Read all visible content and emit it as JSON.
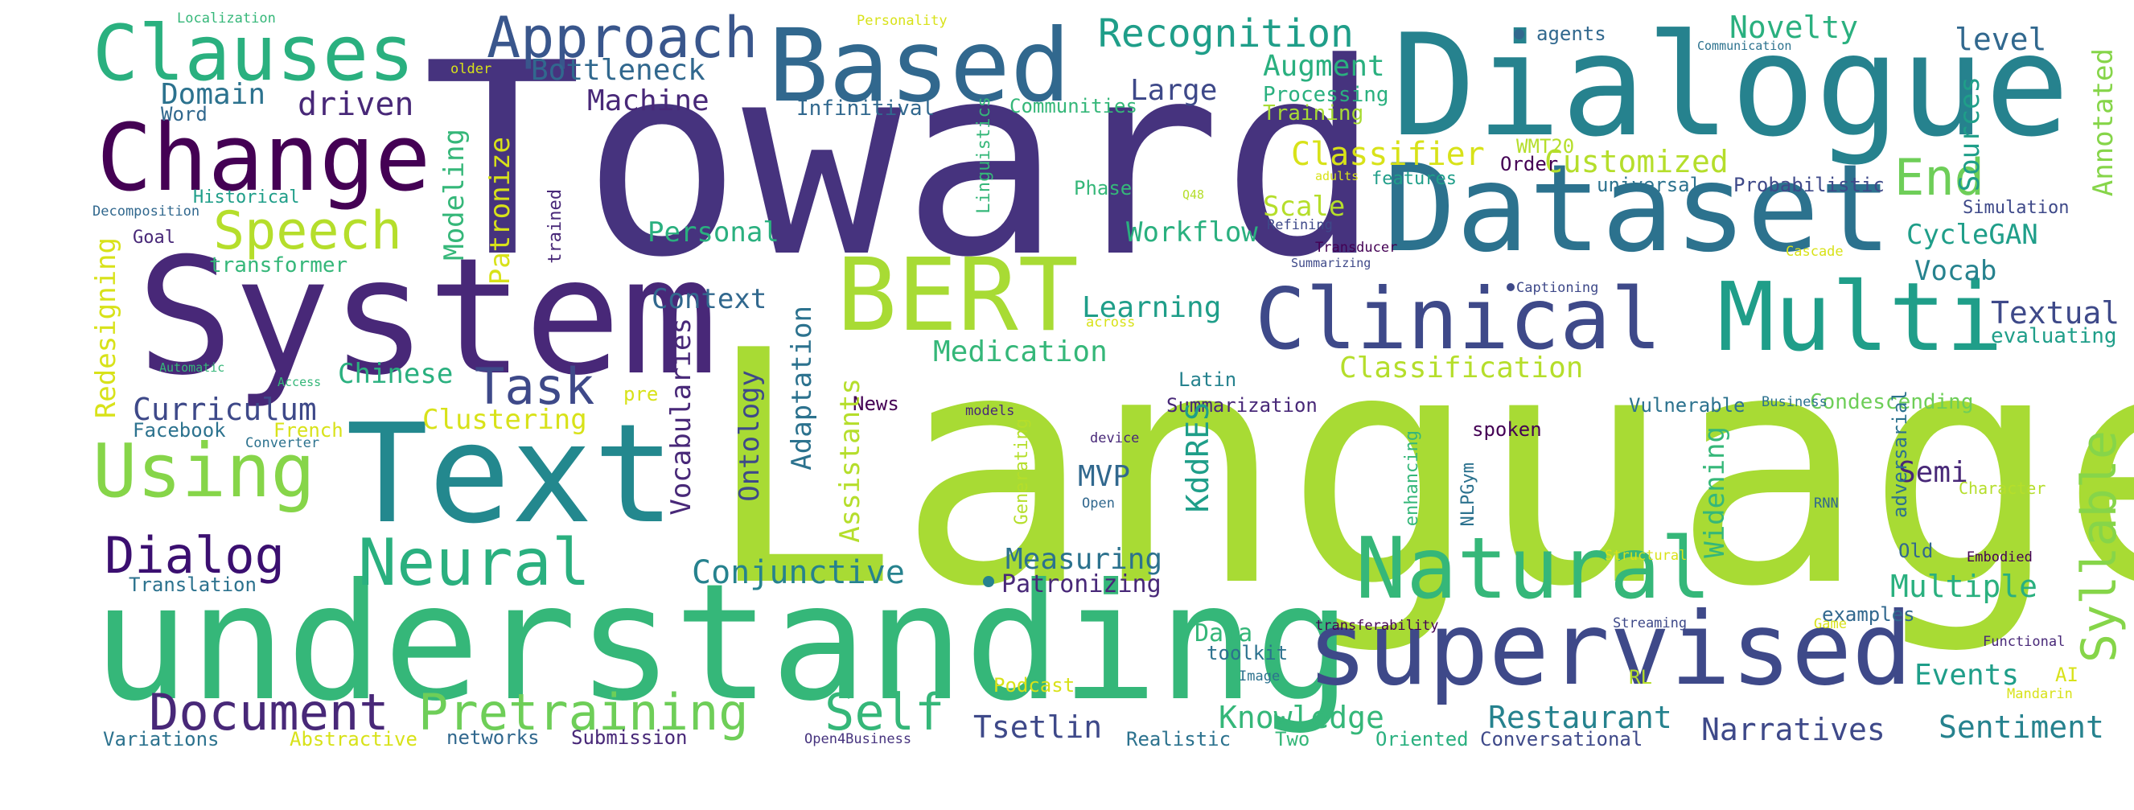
{
  "palette": {
    "dark_purple": "#440154",
    "indigo": "#46337e",
    "slate_blue": "#3e4989",
    "steel_blue": "#31688e",
    "teal": "#26828e",
    "sea_green": "#1f9e89",
    "green": "#35b779",
    "lime": "#6ece58",
    "yellow_green": "#b5de2b",
    "yellow": "#d8e219"
  },
  "words": [
    {
      "text": "Language",
      "color": "#a8db34"
    },
    {
      "text": "Toward",
      "color": "#46337e"
    },
    {
      "text": "understanding",
      "color": "#35b779"
    },
    {
      "text": "System",
      "color": "#482878"
    },
    {
      "text": "Dialogue",
      "color": "#26828e"
    },
    {
      "text": "Dataset",
      "color": "#2c728e"
    },
    {
      "text": "Text",
      "color": "#23888e"
    },
    {
      "text": "supervised",
      "color": "#3e4989"
    },
    {
      "text": "Based",
      "color": "#31688e"
    },
    {
      "text": "Clinical",
      "color": "#3e4989"
    },
    {
      "text": "Multi",
      "color": "#1f9e89"
    },
    {
      "text": "BERT",
      "color": "#a8db34"
    },
    {
      "text": "Natural",
      "color": "#35b779"
    },
    {
      "text": "Change",
      "color": "#440154"
    },
    {
      "text": "Clauses",
      "color": "#2ab07f"
    },
    {
      "text": "Using",
      "color": "#86d549"
    },
    {
      "text": "Neural",
      "color": "#2ab07f"
    },
    {
      "text": "Speech",
      "color": "#b5de2b"
    },
    {
      "text": "Approach",
      "color": "#39568c"
    },
    {
      "text": "Document",
      "color": "#482878"
    },
    {
      "text": "Pretraining",
      "color": "#6ece58"
    },
    {
      "text": "Self",
      "color": "#35b779"
    },
    {
      "text": "Dialog",
      "color": "#3b0f70"
    },
    {
      "text": "Task",
      "color": "#3e4989"
    },
    {
      "text": "End",
      "color": "#6ece58"
    },
    {
      "text": "Syllable",
      "color": "#86d549"
    },
    {
      "text": "Recognition",
      "color": "#1f9e89"
    },
    {
      "text": "Novelty",
      "color": "#2ab07f"
    },
    {
      "text": "level",
      "color": "#31688e"
    },
    {
      "text": "Bottleneck",
      "color": "#31688e"
    },
    {
      "text": "Augment",
      "color": "#2ab07f"
    },
    {
      "text": "Domain",
      "color": "#2c728e"
    },
    {
      "text": "driven",
      "color": "#482878"
    },
    {
      "text": "Machine",
      "color": "#482878"
    },
    {
      "text": "Large",
      "color": "#3e4989"
    },
    {
      "text": "Infinitival",
      "color": "#31688e"
    },
    {
      "text": "Communities",
      "color": "#35b779"
    },
    {
      "text": "Processing",
      "color": "#2ab07f"
    },
    {
      "text": "Training",
      "color": "#a8db34"
    },
    {
      "text": "Word",
      "color": "#31688e"
    },
    {
      "text": "Historical",
      "color": "#1f9e89"
    },
    {
      "text": "Decomposition",
      "color": "#31688e"
    },
    {
      "text": "Goal",
      "color": "#482878"
    },
    {
      "text": "transformer",
      "color": "#35b779"
    },
    {
      "text": "Classifier",
      "color": "#d8e219"
    },
    {
      "text": "Customized",
      "color": "#b5de2b"
    },
    {
      "text": "Scale",
      "color": "#b5de2b"
    },
    {
      "text": "Sources",
      "color": "#1f9e89"
    },
    {
      "text": "Annotated",
      "color": "#86d549"
    },
    {
      "text": "WMT20",
      "color": "#b5de2b"
    },
    {
      "text": "Order",
      "color": "#440154"
    },
    {
      "text": "features",
      "color": "#1f9e89"
    },
    {
      "text": "universal",
      "color": "#2c728e"
    },
    {
      "text": "Probabilistic",
      "color": "#3e4989"
    },
    {
      "text": "Simulation",
      "color": "#3e4989"
    },
    {
      "text": "CycleGAN",
      "color": "#1f9e89"
    },
    {
      "text": "Vocab",
      "color": "#26828e"
    },
    {
      "text": "Textual",
      "color": "#3e4989"
    },
    {
      "text": "evaluating",
      "color": "#1f9e89"
    },
    {
      "text": "Modeling",
      "color": "#35b779"
    },
    {
      "text": "Patronize",
      "color": "#d8e219"
    },
    {
      "text": "Personal",
      "color": "#2ab07f"
    },
    {
      "text": "Workflow",
      "color": "#2ab07f"
    },
    {
      "text": "Context",
      "color": "#31688e"
    },
    {
      "text": "Learning",
      "color": "#1f9e89"
    },
    {
      "text": "Medication",
      "color": "#35b779"
    },
    {
      "text": "Chinese",
      "color": "#2ab07f"
    },
    {
      "text": "Curriculum",
      "color": "#3e4989"
    },
    {
      "text": "Clustering",
      "color": "#d8e219"
    },
    {
      "text": "Facebook",
      "color": "#2c728e"
    },
    {
      "text": "French",
      "color": "#d8e219"
    },
    {
      "text": "Converter",
      "color": "#2c728e"
    },
    {
      "text": "Redesigning",
      "color": "#d8e219"
    },
    {
      "text": "Classification",
      "color": "#b5de2b"
    },
    {
      "text": "Condescending",
      "color": "#6ece58"
    },
    {
      "text": "Summarization",
      "color": "#482878"
    },
    {
      "text": "Latin",
      "color": "#26828e"
    },
    {
      "text": "Vulnerable",
      "color": "#2c728e"
    },
    {
      "text": "Business",
      "color": "#2c728e"
    },
    {
      "text": "News",
      "color": "#440154"
    },
    {
      "text": "models",
      "color": "#482878"
    },
    {
      "text": "MVP",
      "color": "#31688e"
    },
    {
      "text": "KddRES",
      "color": "#1f9e89"
    },
    {
      "text": "spoken",
      "color": "#440154"
    },
    {
      "text": "device",
      "color": "#482878"
    },
    {
      "text": "Open",
      "color": "#31688e"
    },
    {
      "text": "Semi",
      "color": "#482878"
    },
    {
      "text": "Widening",
      "color": "#35b779"
    },
    {
      "text": "NLPGym",
      "color": "#2c728e"
    },
    {
      "text": "RNN",
      "color": "#31688e"
    },
    {
      "text": "adversarial",
      "color": "#2c728e"
    },
    {
      "text": "Character",
      "color": "#b5de2b"
    },
    {
      "text": "Conjunctive",
      "color": "#26828e"
    },
    {
      "text": "Measuring",
      "color": "#2c728e"
    },
    {
      "text": "Patronizing",
      "color": "#482878"
    },
    {
      "text": "Translation",
      "color": "#2c728e"
    },
    {
      "text": "Data",
      "color": "#35b779"
    },
    {
      "text": "toolkit",
      "color": "#2c728e"
    },
    {
      "text": "Knowledge",
      "color": "#35b779"
    },
    {
      "text": "Restaurant",
      "color": "#26828e"
    },
    {
      "text": "Narratives",
      "color": "#3e4989"
    },
    {
      "text": "Sentiment",
      "color": "#26828e"
    },
    {
      "text": "Events",
      "color": "#1f9e89"
    },
    {
      "text": "Multiple",
      "color": "#2ab07f"
    },
    {
      "text": "examples",
      "color": "#31688e"
    },
    {
      "text": "Old",
      "color": "#31688e"
    },
    {
      "text": "Embodied",
      "color": "#440154"
    },
    {
      "text": "AI",
      "color": "#d8e219"
    },
    {
      "text": "Functional",
      "color": "#482878"
    },
    {
      "text": "Mandarin",
      "color": "#d8e219"
    },
    {
      "text": "Game",
      "color": "#d8e219"
    },
    {
      "text": "Structural",
      "color": "#d8e219"
    },
    {
      "text": "Streaming",
      "color": "#3e4989"
    },
    {
      "text": "transferability",
      "color": "#440154"
    },
    {
      "text": "Tsetlin",
      "color": "#3e4989"
    },
    {
      "text": "Realistic",
      "color": "#2c728e"
    },
    {
      "text": "Two",
      "color": "#35b779"
    },
    {
      "text": "Oriented",
      "color": "#2ab07f"
    },
    {
      "text": "Conversational",
      "color": "#3e4989"
    },
    {
      "text": "Variations",
      "color": "#2c728e"
    },
    {
      "text": "Abstractive",
      "color": "#d8e219"
    },
    {
      "text": "networks",
      "color": "#31688e"
    },
    {
      "text": "Submission",
      "color": "#482878"
    },
    {
      "text": "Open4Business",
      "color": "#46337e"
    },
    {
      "text": "Podcast",
      "color": "#d8e219"
    },
    {
      "text": "Image",
      "color": "#2c728e"
    },
    {
      "text": "RL",
      "color": "#b5de2b"
    },
    {
      "text": "Localization",
      "color": "#35b779"
    },
    {
      "text": "Personality",
      "color": "#d8e219"
    },
    {
      "text": "older",
      "color": "#d8e219"
    },
    {
      "text": "agents",
      "color": "#31688e"
    },
    {
      "text": "Communication",
      "color": "#2c728e"
    },
    {
      "text": "Linguistics",
      "color": "#35b779"
    },
    {
      "text": "Q48",
      "color": "#b5de2b"
    },
    {
      "text": "adults",
      "color": "#d8e219"
    },
    {
      "text": "Refining",
      "color": "#3e4989"
    },
    {
      "text": "Transducer",
      "color": "#440154"
    },
    {
      "text": "Summarizing",
      "color": "#3e4989"
    },
    {
      "text": "Cascade",
      "color": "#d8e219"
    },
    {
      "text": "Captioning",
      "color": "#3e4989"
    },
    {
      "text": "across",
      "color": "#d8e219"
    },
    {
      "text": "trained",
      "color": "#482878"
    },
    {
      "text": "Phase",
      "color": "#35b779"
    },
    {
      "text": "Generating",
      "color": "#b5de2b"
    },
    {
      "text": "enhancing",
      "color": "#35b779"
    },
    {
      "text": "Automatic",
      "color": "#35b779"
    },
    {
      "text": "Access",
      "color": "#35b779"
    },
    {
      "text": "pre",
      "color": "#d8e219"
    },
    {
      "text": "Vocabularies",
      "color": "#482878"
    },
    {
      "text": "Ontology",
      "color": "#3e4989"
    },
    {
      "text": "Adaptation",
      "color": "#2c728e"
    },
    {
      "text": "Assistants",
      "color": "#b5de2b"
    }
  ]
}
